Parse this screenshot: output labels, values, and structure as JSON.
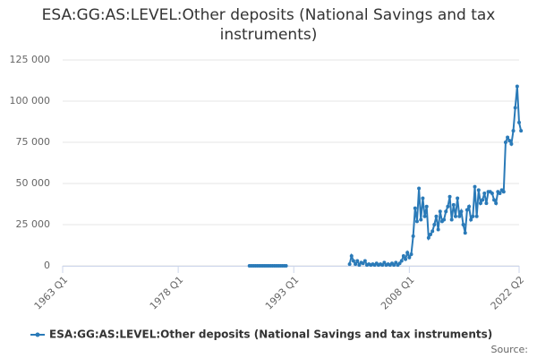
{
  "chart_data": {
    "type": "line",
    "title": "ESA:GG:AS:LEVEL:Other deposits (National Savings and tax instruments)",
    "source": "Source:",
    "x": [
      1987.25,
      1987.5,
      1987.75,
      1988,
      1988.25,
      1988.5,
      1988.75,
      1989,
      1989.25,
      1989.5,
      1989.75,
      1990,
      1990.25,
      1990.5,
      1990.75,
      1991,
      1991.25,
      1991.5,
      1991.75,
      1992,
      1996,
      2000.25,
      2000.5,
      2000.75,
      2001,
      2001.25,
      2001.5,
      2001.75,
      2002,
      2002.25,
      2002.5,
      2002.75,
      2003,
      2003.25,
      2003.5,
      2003.75,
      2004,
      2004.25,
      2004.5,
      2004.75,
      2005,
      2005.25,
      2005.5,
      2005.75,
      2006,
      2006.25,
      2006.5,
      2006.75,
      2007,
      2007.25,
      2007.5,
      2007.75,
      2008,
      2008.25,
      2008.5,
      2008.75,
      2009,
      2009.25,
      2009.5,
      2009.75,
      2010,
      2010.25,
      2010.5,
      2010.75,
      2011,
      2011.25,
      2011.5,
      2011.75,
      2012,
      2012.25,
      2012.5,
      2012.75,
      2013,
      2013.25,
      2013.5,
      2013.75,
      2014,
      2014.25,
      2014.5,
      2014.75,
      2015,
      2015.25,
      2015.5,
      2015.75,
      2016,
      2016.25,
      2016.5,
      2016.75,
      2017,
      2017.25,
      2017.5,
      2017.75,
      2018,
      2018.25,
      2018.5,
      2018.75,
      2019,
      2019.25,
      2019.5,
      2019.75,
      2020,
      2020.25,
      2020.5,
      2020.75,
      2021,
      2021.25,
      2021.5,
      2021.75,
      2022,
      2022.25,
      2022.5
    ],
    "series": [
      {
        "name": "ESA:GG:AS:LEVEL:Other deposits (National Savings and tax instruments)",
        "color": "#2a7ab8",
        "values": [
          0,
          0,
          0,
          0,
          0,
          0,
          0,
          0,
          0,
          0,
          0,
          0,
          0,
          0,
          0,
          0,
          0,
          0,
          0,
          0,
          null,
          1000,
          6000,
          3000,
          1000,
          3000,
          500,
          2000,
          1500,
          3000,
          500,
          1000,
          500,
          1000,
          500,
          1500,
          500,
          1000,
          500,
          2000,
          500,
          1000,
          500,
          1500,
          500,
          2000,
          500,
          1500,
          3000,
          6000,
          4000,
          8000,
          5000,
          7000,
          18000,
          35000,
          27000,
          47000,
          28000,
          41000,
          30000,
          36000,
          17000,
          19000,
          21000,
          25000,
          30000,
          22000,
          33000,
          27000,
          28000,
          33000,
          36000,
          42000,
          28000,
          37000,
          30000,
          41000,
          30000,
          33000,
          25000,
          20000,
          34000,
          36000,
          28000,
          30000,
          48000,
          30000,
          46000,
          38000,
          40000,
          44000,
          38000,
          45000,
          45000,
          44000,
          40000,
          38000,
          45000,
          44000,
          46000,
          45000,
          75000,
          78000,
          76000,
          74000,
          82000,
          96000,
          109000,
          87000,
          82000
        ]
      }
    ],
    "xlim": [
      1963,
      2022.25
    ],
    "xticks": [
      {
        "value": 1963,
        "label": "1963 Q1"
      },
      {
        "value": 1978,
        "label": "1978 Q1"
      },
      {
        "value": 1993,
        "label": "1993 Q1"
      },
      {
        "value": 2008,
        "label": "2008 Q1"
      },
      {
        "value": 2022.25,
        "label": "2022 Q2"
      }
    ],
    "ylim": [
      0,
      125000
    ],
    "yticks": [
      0,
      {
        "value": 25000,
        "label": "25 000"
      },
      {
        "value": 50000,
        "label": "50 000"
      },
      {
        "value": 75000,
        "label": "75 000"
      },
      {
        "value": 100000,
        "label": "100 000"
      },
      {
        "value": 125000,
        "label": "125 000"
      }
    ],
    "grid": true
  }
}
